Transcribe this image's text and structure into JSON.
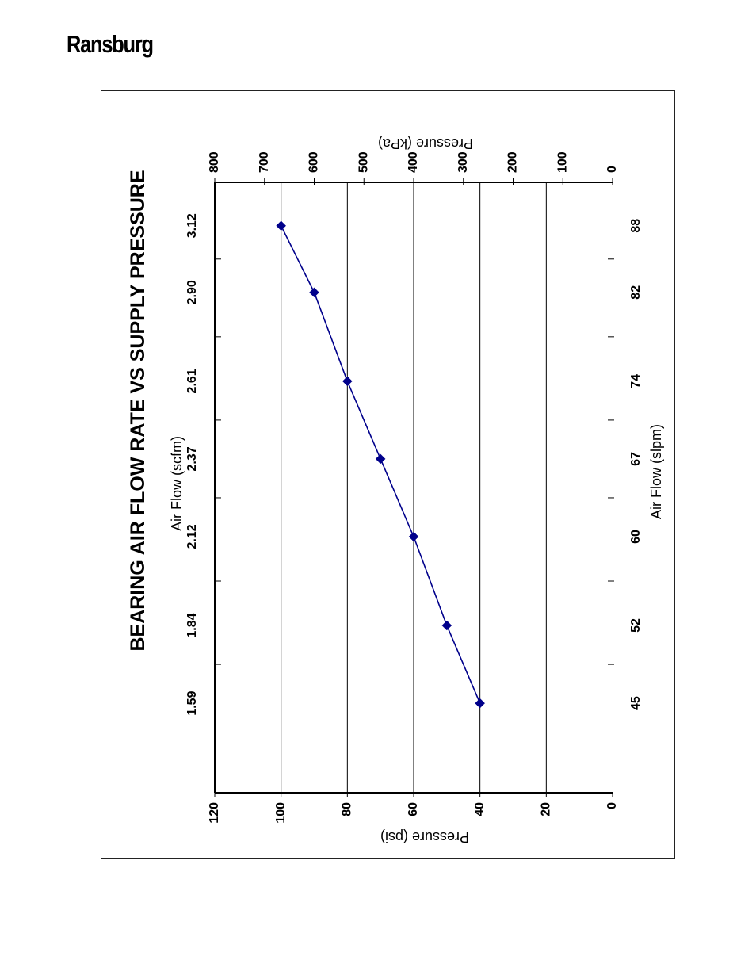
{
  "brand": {
    "name": "Ransburg"
  },
  "chart_data": {
    "type": "line",
    "title": "BEARING AIR FLOW RATE VS SUPPLY PRESSURE",
    "x_scfm_label": "Air Flow (scfm)",
    "x_slpm_label": "Air Flow (slpm)",
    "y_psi_label": "Pressure (psi)",
    "y_kpa_label": "Pressure (kPa)",
    "scfm_ticks": [
      "1.59",
      "1.84",
      "2.12",
      "2.37",
      "2.61",
      "2.90",
      "3.12"
    ],
    "slpm_ticks": [
      "45",
      "52",
      "60",
      "67",
      "74",
      "82",
      "88"
    ],
    "psi_ticks": [
      "0",
      "20",
      "40",
      "60",
      "80",
      "100",
      "120"
    ],
    "kpa_ticks": [
      "0",
      "100",
      "200",
      "300",
      "400",
      "500",
      "600",
      "700",
      "800"
    ],
    "psi_range": [
      0,
      120
    ],
    "kpa_range": [
      0,
      800
    ],
    "grid": true,
    "series": [
      {
        "x_scfm": [
          "1.59",
          "1.84",
          "2.12",
          "2.37",
          "2.61",
          "2.90",
          "3.12"
        ],
        "x_slpm": [
          45,
          52,
          60,
          67,
          74,
          82,
          88
        ],
        "pressure_psi": [
          40,
          50,
          60,
          70,
          80,
          90,
          100
        ]
      }
    ],
    "colors": {
      "series": "#00008b",
      "axes": "#000000"
    }
  }
}
